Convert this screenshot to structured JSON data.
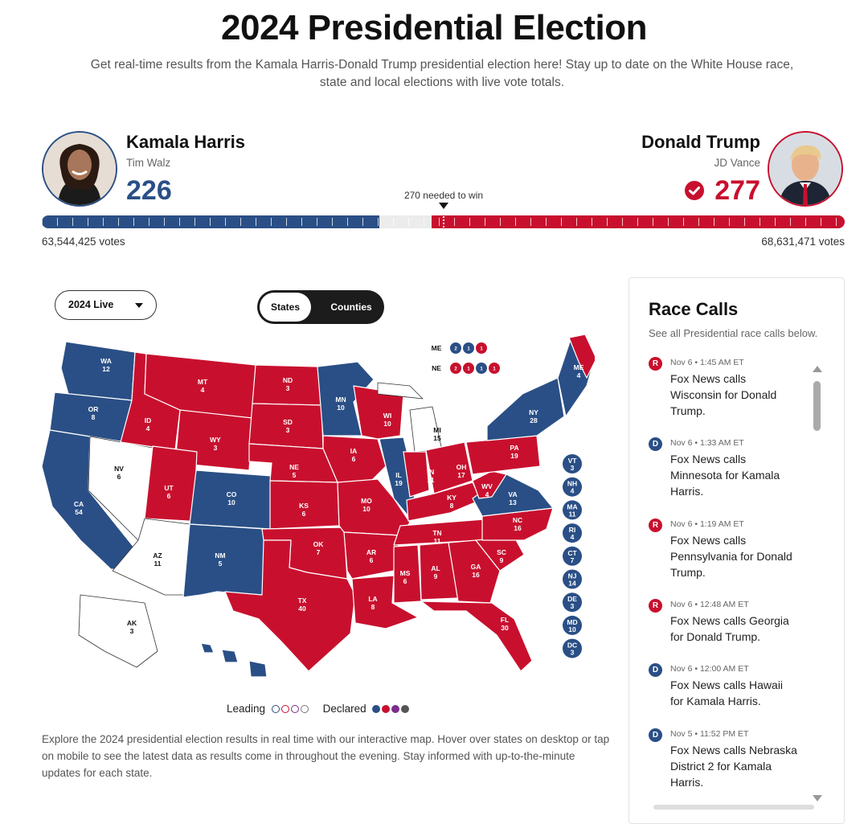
{
  "page": {
    "title": "2024 Presidential Election",
    "subtitle": "Get real-time results from the Kamala Harris-Donald Trump presidential election here! Stay up to date on the White House race, state and local elections with live vote totals."
  },
  "colors": {
    "dem": "#2a4f86",
    "rep": "#c8102e",
    "undecided": "#ffffff"
  },
  "candidates": {
    "dem": {
      "name": "Kamala Harris",
      "running_mate": "Tim Walz",
      "electoral_votes": "226",
      "popular_votes": "63,544,425 votes",
      "electoral_fraction": 0.42
    },
    "rep": {
      "name": "Donald Trump",
      "running_mate": "JD Vance",
      "electoral_votes": "277",
      "popular_votes": "68,631,471 votes",
      "electoral_fraction": 0.515,
      "winner_icon": "check-circle-icon"
    }
  },
  "needed_to_win": "270 needed to win",
  "controls": {
    "year_dropdown": "2024 Live",
    "view_toggle": {
      "selected": "States",
      "other": "Counties"
    }
  },
  "map": {
    "states": [
      {
        "abbr": "WA",
        "ev": "12",
        "party": "D"
      },
      {
        "abbr": "OR",
        "ev": "8",
        "party": "D"
      },
      {
        "abbr": "CA",
        "ev": "54",
        "party": "D"
      },
      {
        "abbr": "NV",
        "ev": "6",
        "party": ""
      },
      {
        "abbr": "ID",
        "ev": "4",
        "party": "R"
      },
      {
        "abbr": "MT",
        "ev": "4",
        "party": "R"
      },
      {
        "abbr": "WY",
        "ev": "3",
        "party": "R"
      },
      {
        "abbr": "UT",
        "ev": "6",
        "party": "R"
      },
      {
        "abbr": "AZ",
        "ev": "11",
        "party": ""
      },
      {
        "abbr": "CO",
        "ev": "10",
        "party": "D"
      },
      {
        "abbr": "NM",
        "ev": "5",
        "party": "D"
      },
      {
        "abbr": "ND",
        "ev": "3",
        "party": "R"
      },
      {
        "abbr": "SD",
        "ev": "3",
        "party": "R"
      },
      {
        "abbr": "NE",
        "ev": "5",
        "party": "R"
      },
      {
        "abbr": "KS",
        "ev": "6",
        "party": "R"
      },
      {
        "abbr": "OK",
        "ev": "7",
        "party": "R"
      },
      {
        "abbr": "TX",
        "ev": "40",
        "party": "R"
      },
      {
        "abbr": "MN",
        "ev": "10",
        "party": "D"
      },
      {
        "abbr": "IA",
        "ev": "6",
        "party": "R"
      },
      {
        "abbr": "MO",
        "ev": "10",
        "party": "R"
      },
      {
        "abbr": "AR",
        "ev": "6",
        "party": "R"
      },
      {
        "abbr": "LA",
        "ev": "8",
        "party": "R"
      },
      {
        "abbr": "WI",
        "ev": "10",
        "party": "R"
      },
      {
        "abbr": "IL",
        "ev": "19",
        "party": "D"
      },
      {
        "abbr": "MI",
        "ev": "15",
        "party": ""
      },
      {
        "abbr": "IN",
        "ev": "11",
        "party": "R"
      },
      {
        "abbr": "OH",
        "ev": "17",
        "party": "R"
      },
      {
        "abbr": "KY",
        "ev": "8",
        "party": "R"
      },
      {
        "abbr": "TN",
        "ev": "11",
        "party": "R"
      },
      {
        "abbr": "MS",
        "ev": "6",
        "party": "R"
      },
      {
        "abbr": "AL",
        "ev": "9",
        "party": "R"
      },
      {
        "abbr": "GA",
        "ev": "16",
        "party": "R"
      },
      {
        "abbr": "FL",
        "ev": "30",
        "party": "R"
      },
      {
        "abbr": "SC",
        "ev": "9",
        "party": "R"
      },
      {
        "abbr": "NC",
        "ev": "16",
        "party": "R"
      },
      {
        "abbr": "VA",
        "ev": "13",
        "party": "D"
      },
      {
        "abbr": "WV",
        "ev": "4",
        "party": "R"
      },
      {
        "abbr": "PA",
        "ev": "19",
        "party": "R"
      },
      {
        "abbr": "NY",
        "ev": "28",
        "party": "D"
      },
      {
        "abbr": "ME",
        "ev": "4",
        "party": "split"
      },
      {
        "abbr": "AK",
        "ev": "3",
        "party": ""
      },
      {
        "abbr": "HI",
        "ev": "",
        "party": "D"
      }
    ],
    "small_states": [
      {
        "abbr": "VT",
        "ev": "3"
      },
      {
        "abbr": "NH",
        "ev": "4"
      },
      {
        "abbr": "MA",
        "ev": "11"
      },
      {
        "abbr": "RI",
        "ev": "4"
      },
      {
        "abbr": "CT",
        "ev": "7"
      },
      {
        "abbr": "NJ",
        "ev": "14"
      },
      {
        "abbr": "DE",
        "ev": "3"
      },
      {
        "abbr": "MD",
        "ev": "10"
      },
      {
        "abbr": "DC",
        "ev": "3"
      }
    ],
    "districts": [
      {
        "label": "ME",
        "dots": [
          {
            "v": "2",
            "party": "D"
          },
          {
            "v": "1",
            "party": "D"
          },
          {
            "v": "1",
            "party": "R"
          }
        ]
      },
      {
        "label": "NE",
        "dots": [
          {
            "v": "2",
            "party": "R"
          },
          {
            "v": "1",
            "party": "R"
          },
          {
            "v": "1",
            "party": "D"
          },
          {
            "v": "1",
            "party": "R"
          }
        ]
      }
    ]
  },
  "legend": {
    "leading": "Leading",
    "declared": "Declared"
  },
  "explain": "Explore the 2024 presidential election results in real time with our interactive map. Hover over states on desktop or tap on mobile to see the latest data as results come in throughout the evening. Stay informed with up-to-the-minute updates for each state.",
  "race_calls": {
    "title": "Race Calls",
    "subtitle": "See all Presidential race calls below.",
    "items": [
      {
        "party": "R",
        "time": "Nov 6 • 1:45 AM ET",
        "text": "Fox News calls Wisconsin for Donald Trump."
      },
      {
        "party": "D",
        "time": "Nov 6 • 1:33 AM ET",
        "text": "Fox News calls Minnesota for Kamala Harris."
      },
      {
        "party": "R",
        "time": "Nov 6 • 1:19 AM ET",
        "text": "Fox News calls Pennsylvania for Donald Trump."
      },
      {
        "party": "R",
        "time": "Nov 6 • 12:48 AM ET",
        "text": "Fox News calls Georgia for Donald Trump."
      },
      {
        "party": "D",
        "time": "Nov 6 • 12:00 AM ET",
        "text": "Fox News calls Hawaii for Kamala Harris."
      },
      {
        "party": "D",
        "time": "Nov 5 • 11:52 PM ET",
        "text": "Fox News calls Nebraska District 2 for Kamala Harris."
      }
    ]
  }
}
